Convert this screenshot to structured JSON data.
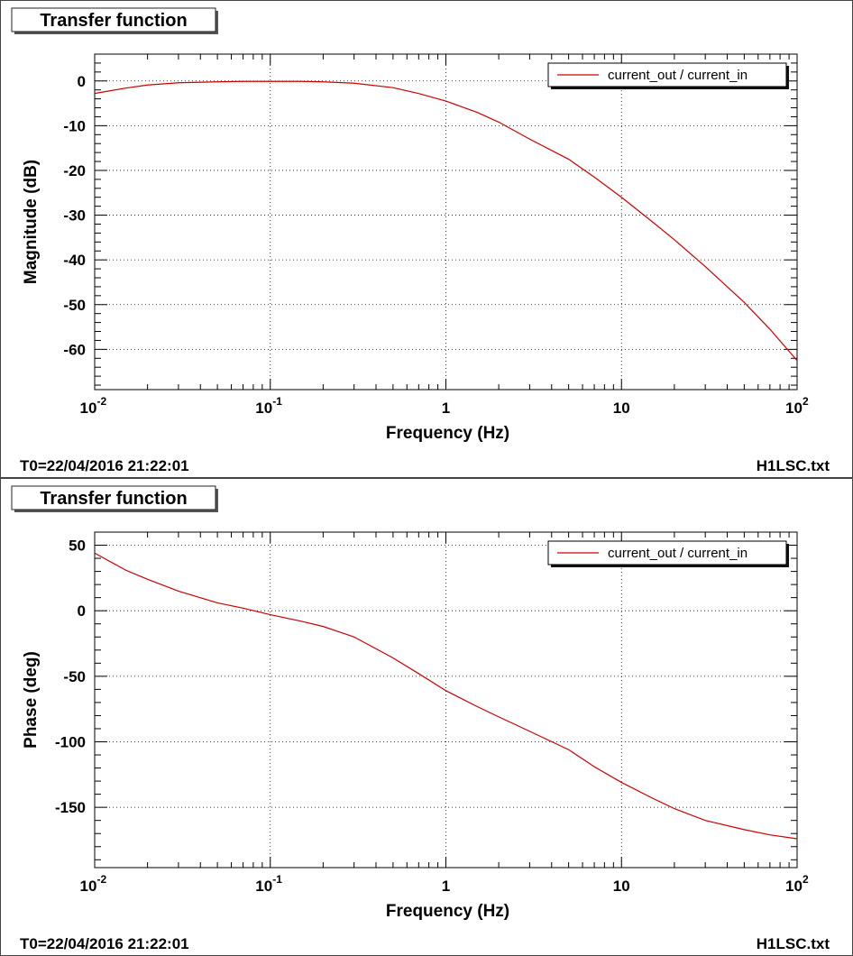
{
  "chart_data": [
    {
      "type": "line",
      "title": "Transfer function",
      "xlabel": "Frequency (Hz)",
      "ylabel": "Magnitude (dB)",
      "x_scale": "log",
      "xlim": [
        0.01,
        100
      ],
      "ylim": [
        -69,
        6
      ],
      "grid": true,
      "legend_placement": "top-right",
      "x_ticks": [
        {
          "value": 0.01,
          "base": "10",
          "exp": "-2"
        },
        {
          "value": 0.1,
          "base": "10",
          "exp": "-1"
        },
        {
          "value": 1,
          "base": "1",
          "exp": ""
        },
        {
          "value": 10,
          "base": "10",
          "exp": ""
        },
        {
          "value": 100,
          "base": "10",
          "exp": "2"
        }
      ],
      "y_ticks": [
        0,
        -10,
        -20,
        -30,
        -40,
        -50,
        -60
      ],
      "series": [
        {
          "name": "current_out / current_in",
          "color": "#cc0000",
          "x": [
            0.01,
            0.015,
            0.02,
            0.03,
            0.05,
            0.07,
            0.1,
            0.15,
            0.2,
            0.3,
            0.5,
            0.7,
            1,
            1.5,
            2,
            3,
            5,
            7,
            10,
            15,
            20,
            30,
            50,
            70,
            100
          ],
          "y": [
            -2.8,
            -1.6,
            -0.9,
            -0.4,
            -0.2,
            -0.1,
            -0.1,
            -0.1,
            -0.2,
            -0.5,
            -1.5,
            -2.8,
            -4.5,
            -7.0,
            -9.2,
            -13.0,
            -17.5,
            -21.5,
            -26.0,
            -31.5,
            -35.5,
            -41.5,
            -49.5,
            -55.5,
            -62.5
          ]
        }
      ],
      "footer_left": "T0=22/04/2016 21:22:01",
      "footer_right": "H1LSC.txt"
    },
    {
      "type": "line",
      "title": "Transfer function",
      "xlabel": "Frequency (Hz)",
      "ylabel": "Phase (deg)",
      "x_scale": "log",
      "xlim": [
        0.01,
        100
      ],
      "ylim": [
        -196,
        60
      ],
      "grid": true,
      "legend_placement": "top-right",
      "x_ticks": [
        {
          "value": 0.01,
          "base": "10",
          "exp": "-2"
        },
        {
          "value": 0.1,
          "base": "10",
          "exp": "-1"
        },
        {
          "value": 1,
          "base": "1",
          "exp": ""
        },
        {
          "value": 10,
          "base": "10",
          "exp": ""
        },
        {
          "value": 100,
          "base": "10",
          "exp": "2"
        }
      ],
      "y_ticks": [
        50,
        0,
        -50,
        -100,
        -150
      ],
      "series": [
        {
          "name": "current_out / current_in",
          "color": "#cc0000",
          "x": [
            0.01,
            0.015,
            0.02,
            0.03,
            0.05,
            0.07,
            0.1,
            0.15,
            0.2,
            0.3,
            0.5,
            0.7,
            1,
            1.5,
            2,
            3,
            5,
            7,
            10,
            15,
            20,
            30,
            50,
            70,
            100
          ],
          "y": [
            44,
            31,
            24,
            15,
            6,
            2,
            -3,
            -8,
            -12,
            -20,
            -36,
            -48,
            -61,
            -73,
            -81,
            -92,
            -106,
            -119,
            -131,
            -143,
            -151,
            -160,
            -167,
            -171,
            -174
          ]
        }
      ],
      "footer_left": "T0=22/04/2016 21:22:01",
      "footer_right": "H1LSC.txt"
    }
  ]
}
